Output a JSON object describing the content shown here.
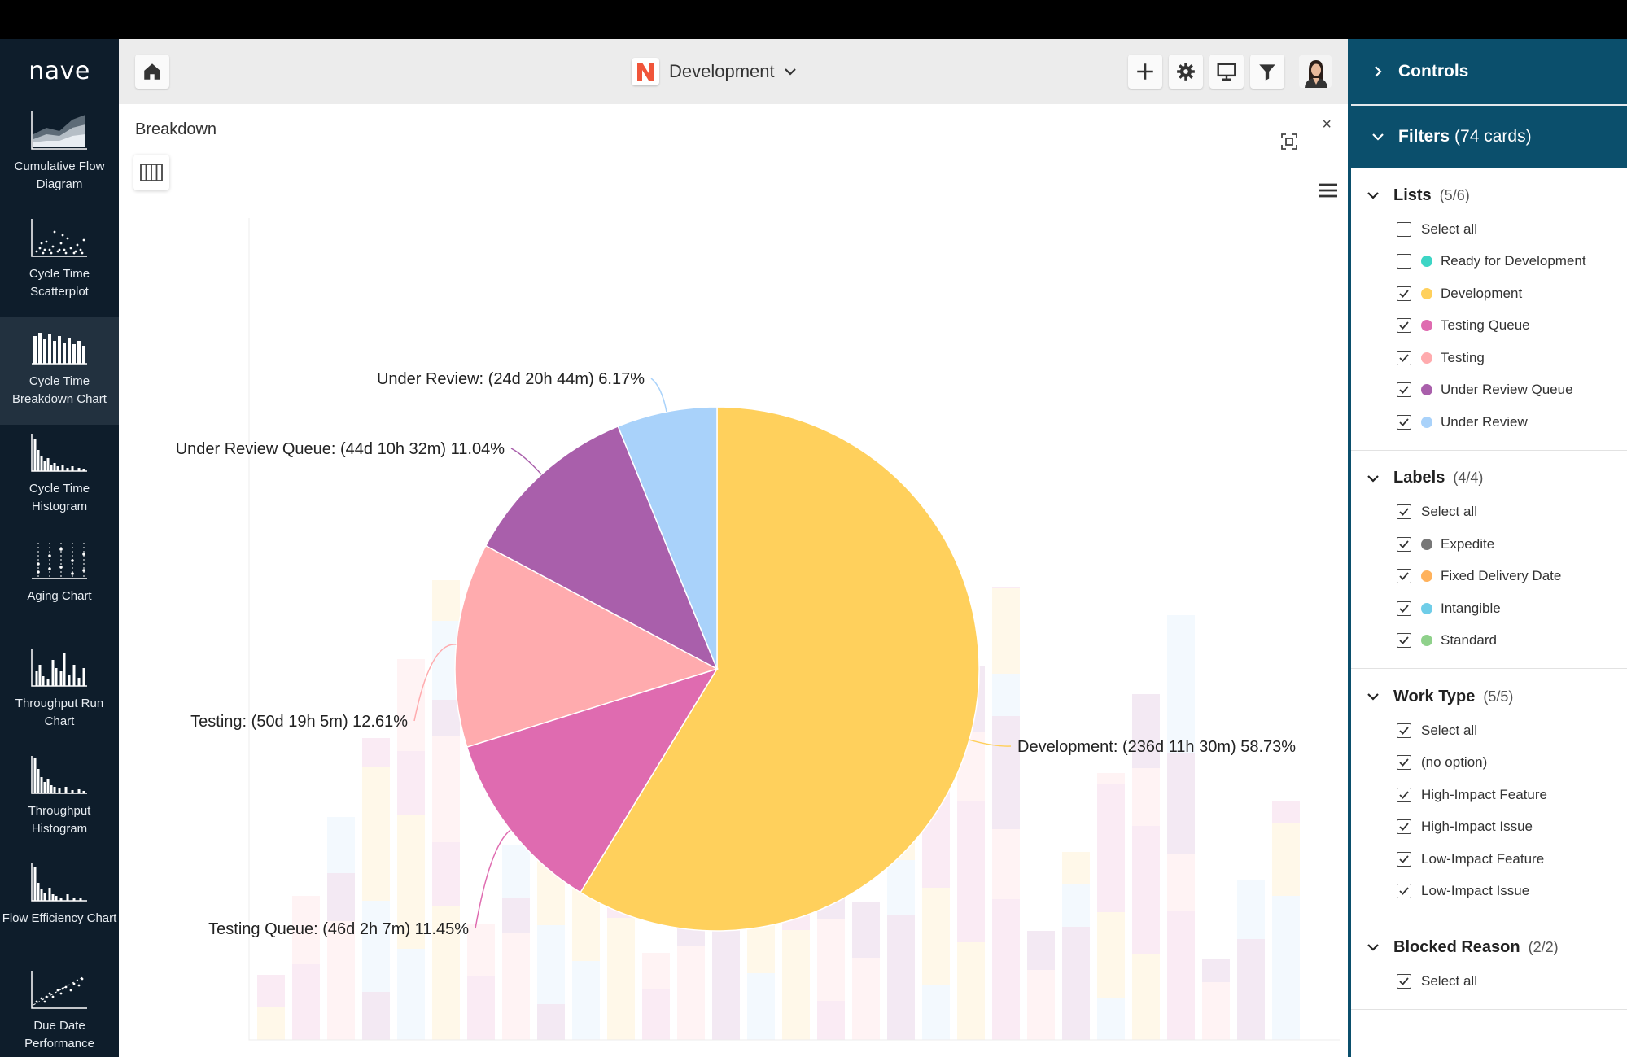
{
  "sidebar": {
    "logo": "nave",
    "items": [
      {
        "label": "Cumulative Flow Diagram",
        "icon": "cumulative-flow-icon"
      },
      {
        "label": "Cycle Time Scatterplot",
        "icon": "scatterplot-icon"
      },
      {
        "label": "Cycle Time Breakdown Chart",
        "icon": "breakdown-chart-icon",
        "active": true
      },
      {
        "label": "Cycle Time Histogram",
        "icon": "histogram-icon"
      },
      {
        "label": "Aging Chart",
        "icon": "aging-chart-icon"
      },
      {
        "label": "Throughput Run Chart",
        "icon": "run-chart-icon"
      },
      {
        "label": "Throughput Histogram",
        "icon": "throughput-histogram-icon"
      },
      {
        "label": "Flow Efficiency Chart",
        "icon": "flow-efficiency-icon"
      },
      {
        "label": "Due Date Performance",
        "icon": "due-date-icon"
      }
    ]
  },
  "header": {
    "board_name": "Development",
    "board_logo": "N",
    "buttons": [
      "plus-icon",
      "gear-icon",
      "monitor-icon",
      "filter-icon"
    ]
  },
  "main": {
    "title": "Breakdown",
    "close": "×"
  },
  "chart_data": {
    "type": "pie",
    "slices": [
      {
        "label": "Development: (236d 11h 30m) 58.73%",
        "value": 58.73,
        "color": "#ffd05c"
      },
      {
        "label": "Testing Queue: (46d 2h 7m) 11.45%",
        "value": 11.45,
        "color": "#df6bb0"
      },
      {
        "label": "Testing: (50d 19h 5m) 12.61%",
        "value": 12.61,
        "color": "#ffabae"
      },
      {
        "label": "Under Review Queue: (44d 10h 32m) 11.04%",
        "value": 11.04,
        "color": "#a95fab"
      },
      {
        "label": "Under Review: (24d 20h 44m) 6.17%",
        "value": 6.17,
        "color": "#a9d2fa"
      }
    ]
  },
  "controls": {
    "title": "Controls",
    "filters_label": "Filters",
    "filters_count": "(74 cards)",
    "groups": [
      {
        "title": "Lists",
        "count": "(5/6)",
        "options": [
          {
            "label": "Select all",
            "checked": false
          },
          {
            "label": "Ready for Development",
            "checked": false,
            "color": "#3dd5c5"
          },
          {
            "label": "Development",
            "checked": true,
            "color": "#ffd05c"
          },
          {
            "label": "Testing Queue",
            "checked": true,
            "color": "#df6bb0"
          },
          {
            "label": "Testing",
            "checked": true,
            "color": "#ffabae"
          },
          {
            "label": "Under Review Queue",
            "checked": true,
            "color": "#a95fab"
          },
          {
            "label": "Under Review",
            "checked": true,
            "color": "#a9d2fa"
          }
        ]
      },
      {
        "title": "Labels",
        "count": "(4/4)",
        "options": [
          {
            "label": "Select all",
            "checked": true
          },
          {
            "label": "Expedite",
            "checked": true,
            "color": "#777777"
          },
          {
            "label": "Fixed Delivery Date",
            "checked": true,
            "color": "#ffb25c"
          },
          {
            "label": "Intangible",
            "checked": true,
            "color": "#6fcde8"
          },
          {
            "label": "Standard",
            "checked": true,
            "color": "#8fd18b"
          }
        ]
      },
      {
        "title": "Work Type",
        "count": "(5/5)",
        "options": [
          {
            "label": "Select all",
            "checked": true
          },
          {
            "label": "(no option)",
            "checked": true
          },
          {
            "label": "High-Impact Feature",
            "checked": true
          },
          {
            "label": "High-Impact Issue",
            "checked": true
          },
          {
            "label": "Low-Impact Feature",
            "checked": true
          },
          {
            "label": "Low-Impact Issue",
            "checked": true
          }
        ]
      },
      {
        "title": "Blocked Reason",
        "count": "(2/2)",
        "options": [
          {
            "label": "Select all",
            "checked": true
          }
        ]
      }
    ]
  }
}
